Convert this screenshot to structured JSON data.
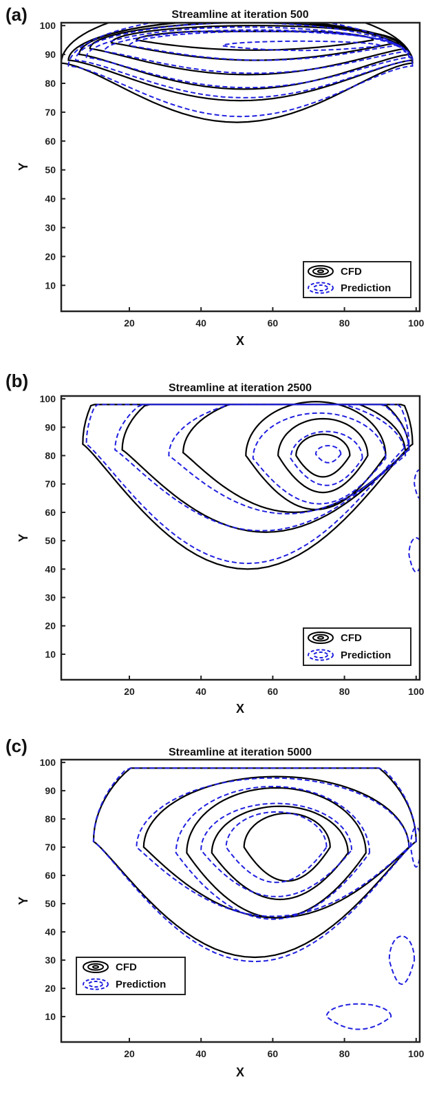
{
  "chart_data": [
    {
      "panel": "(a)",
      "type": "contour",
      "title": "Streamline at iteration 500",
      "xlabel": "X",
      "ylabel": "Y",
      "xlim": [
        1,
        101
      ],
      "ylim": [
        1,
        101
      ],
      "xticks": [
        20,
        40,
        60,
        80,
        100
      ],
      "yticks": [
        10,
        20,
        30,
        40,
        50,
        60,
        70,
        80,
        90,
        100
      ],
      "legend": {
        "position": "bottom-right",
        "entries": [
          "CFD",
          "Prediction"
        ]
      },
      "series": [
        {
          "name": "CFD",
          "color": "#000000",
          "dash": false,
          "contours": [
            {
              "cx": 55,
              "cy": 95,
              "rx": 33,
              "ry": 3.5,
              "lower_power": 2,
              "top_cap": 98
            },
            {
              "cx": 55,
              "cy": 94,
              "rx": 40,
              "ry": 6,
              "lower_power": 2.4,
              "top_cap": 100
            },
            {
              "cx": 53,
              "cy": 92,
              "rx": 44,
              "ry": 9,
              "lower_power": 2.6,
              "top_cap": 101
            },
            {
              "cx": 52,
              "cy": 90,
              "rx": 46,
              "ry": 12,
              "lower_power": 2.8,
              "top_cap": 101
            },
            {
              "cx": 51,
              "cy": 88,
              "rx": 48,
              "ry": 14,
              "lower_power": 3,
              "top_cap": 101
            },
            {
              "cx": 50,
              "cy": 87,
              "rx": 49,
              "ry": 20.5,
              "lower_power": 3.2,
              "top_cap": 101
            }
          ]
        },
        {
          "name": "Prediction",
          "color": "#1f1fe0",
          "dash": true,
          "contours": [
            {
              "cx": 68,
              "cy": 93,
              "rx": 22,
              "ry": 1.6,
              "lower_power": 2,
              "top_cap": 96
            },
            {
              "cx": 57,
              "cy": 93,
              "rx": 37,
              "ry": 5,
              "lower_power": 2.4,
              "top_cap": 100
            },
            {
              "cx": 55,
              "cy": 91,
              "rx": 42,
              "ry": 7.5,
              "lower_power": 2.6,
              "top_cap": 101
            },
            {
              "cx": 53,
              "cy": 89,
              "rx": 45,
              "ry": 10.5,
              "lower_power": 2.8,
              "top_cap": 101
            },
            {
              "cx": 52,
              "cy": 88,
              "rx": 47,
              "ry": 13,
              "lower_power": 3,
              "top_cap": 101
            },
            {
              "cx": 51,
              "cy": 86,
              "rx": 48,
              "ry": 17.5,
              "lower_power": 3.2,
              "top_cap": 101
            }
          ]
        }
      ]
    },
    {
      "panel": "(b)",
      "type": "contour",
      "title": "Streamline at iteration 2500",
      "xlabel": "X",
      "ylabel": "Y",
      "xlim": [
        1,
        101
      ],
      "ylim": [
        1,
        101
      ],
      "xticks": [
        20,
        40,
        60,
        80,
        100
      ],
      "yticks": [
        10,
        20,
        30,
        40,
        50,
        60,
        70,
        80,
        90,
        100
      ],
      "legend": {
        "position": "bottom-right",
        "entries": [
          "CFD",
          "Prediction"
        ]
      },
      "series": [
        {
          "name": "CFD",
          "color": "#000000",
          "dash": false,
          "contours": [
            {
              "cx": 74,
              "cy": 80,
              "rx": 7.5,
              "ry": 7.5,
              "lower_power": 2,
              "top_cap": 101
            },
            {
              "cx": 74,
              "cy": 80,
              "rx": 12.5,
              "ry": 13,
              "lower_power": 2,
              "top_cap": 101
            },
            {
              "cx": 72,
              "cy": 80,
              "rx": 19.5,
              "ry": 19,
              "lower_power": 2.1,
              "top_cap": 101
            },
            {
              "cx": 66,
              "cy": 81,
              "rx": 31,
              "ry": 21,
              "lower_power": 2.2,
              "top_cap": 98
            },
            {
              "cx": 58,
              "cy": 82,
              "rx": 40,
              "ry": 29,
              "lower_power": 2.3,
              "top_cap": 98
            },
            {
              "cx": 53,
              "cy": 84,
              "rx": 46,
              "ry": 44,
              "lower_power": 2.4,
              "top_cap": 98
            }
          ]
        },
        {
          "name": "Prediction",
          "color": "#1f1fe0",
          "dash": true,
          "contours": [
            {
              "cx": 75.5,
              "cy": 80.5,
              "rx": 3.5,
              "ry": 3,
              "lower_power": 2,
              "top_cap": 101
            },
            {
              "cx": 75,
              "cy": 79,
              "rx": 10,
              "ry": 9.5,
              "lower_power": 2,
              "top_cap": 101
            },
            {
              "cx": 73,
              "cy": 79,
              "rx": 18.5,
              "ry": 16,
              "lower_power": 2.1,
              "top_cap": 101
            },
            {
              "cx": 64,
              "cy": 80,
              "rx": 33,
              "ry": 20.5,
              "lower_power": 2.2,
              "top_cap": 98
            },
            {
              "cx": 57,
              "cy": 82,
              "rx": 41,
              "ry": 28.5,
              "lower_power": 2.3,
              "top_cap": 98
            },
            {
              "cx": 53,
              "cy": 84,
              "rx": 45,
              "ry": 42,
              "lower_power": 2.4,
              "top_cap": 98
            },
            {
              "cx": 101,
              "cy": 70,
              "rx": 1.5,
              "ry": 5,
              "lower_power": 2,
              "top_cap": 101
            },
            {
              "cx": 100,
              "cy": 45,
              "rx": 2,
              "ry": 6,
              "lower_power": 2,
              "top_cap": 101
            }
          ]
        }
      ]
    },
    {
      "panel": "(c)",
      "type": "contour",
      "title": "Streamline at iteration 5000",
      "xlabel": "X",
      "ylabel": "Y",
      "xlim": [
        1,
        101
      ],
      "ylim": [
        1,
        101
      ],
      "xticks": [
        20,
        40,
        60,
        80,
        100
      ],
      "yticks": [
        10,
        20,
        30,
        40,
        50,
        60,
        70,
        80,
        90,
        100
      ],
      "legend": {
        "position": "bottom-left",
        "entries": [
          "CFD",
          "Prediction"
        ]
      },
      "series": [
        {
          "name": "CFD",
          "color": "#000000",
          "dash": false,
          "contours": [
            {
              "cx": 64,
              "cy": 70,
              "rx": 12,
              "ry": 12,
              "lower_power": 2,
              "top_cap": 101
            },
            {
              "cx": 62,
              "cy": 68,
              "rx": 19,
              "ry": 16.5,
              "lower_power": 2,
              "top_cap": 101
            },
            {
              "cx": 61,
              "cy": 68,
              "rx": 25,
              "ry": 23,
              "lower_power": 2,
              "top_cap": 101
            },
            {
              "cx": 61,
              "cy": 70,
              "rx": 37,
              "ry": 25,
              "lower_power": 2.1,
              "top_cap": 101
            },
            {
              "cx": 55,
              "cy": 72,
              "rx": 45,
              "ry": 41,
              "lower_power": 2.4,
              "top_cap": 98
            }
          ]
        },
        {
          "name": "Prediction",
          "color": "#1f1fe0",
          "dash": true,
          "contours": [
            {
              "cx": 61,
              "cy": 70,
              "rx": 14,
              "ry": 12.5,
              "lower_power": 2,
              "top_cap": 101
            },
            {
              "cx": 61,
              "cy": 69,
              "rx": 21,
              "ry": 16.5,
              "lower_power": 2,
              "top_cap": 101
            },
            {
              "cx": 60,
              "cy": 68,
              "rx": 27,
              "ry": 23.5,
              "lower_power": 2,
              "top_cap": 101
            },
            {
              "cx": 60,
              "cy": 70,
              "rx": 38,
              "ry": 24.5,
              "lower_power": 2.1,
              "top_cap": 101
            },
            {
              "cx": 55,
              "cy": 72,
              "rx": 45,
              "ry": 42.5,
              "lower_power": 2.4,
              "top_cap": 98
            },
            {
              "cx": 100,
              "cy": 70,
              "rx": 1.5,
              "ry": 7,
              "lower_power": 2,
              "top_cap": 101
            },
            {
              "cx": 96,
              "cy": 30,
              "rx": 3.5,
              "ry": 8.5,
              "lower_power": 2,
              "top_cap": 101
            },
            {
              "cx": 84,
              "cy": 10,
              "rx": 9,
              "ry": 4.5,
              "lower_power": 2,
              "top_cap": 101
            }
          ]
        }
      ]
    }
  ]
}
